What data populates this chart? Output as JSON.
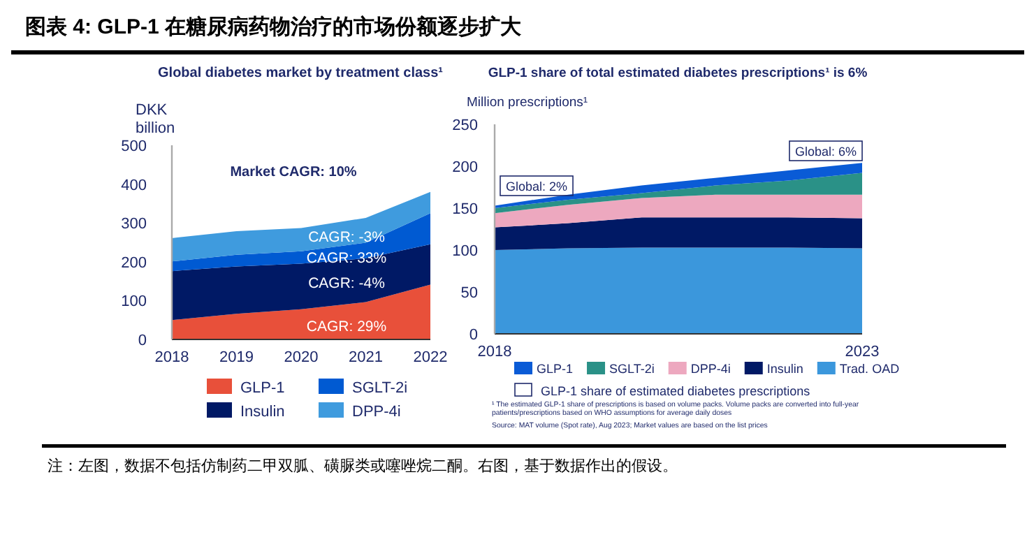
{
  "chart_data": [
    {
      "type": "area",
      "stacked": true,
      "title": "图表 4: GLP-1 在糖尿病药物治疗的市场份额逐步扩大",
      "subtitle": "Global diabetes market by treatment class¹",
      "ylabel": "DKK billion",
      "x": [
        2018,
        2019,
        2020,
        2021,
        2022
      ],
      "xlim": [
        2018,
        2022
      ],
      "xticks": [
        2018,
        2019,
        2020,
        2021,
        2022
      ],
      "ylim": [
        0,
        500
      ],
      "yticks": [
        0,
        100,
        200,
        300,
        400,
        500
      ],
      "legend": "bottom",
      "series": [
        {
          "name": "GLP-1",
          "color": "#e8503a",
          "values": [
            50,
            66,
            78,
            96,
            141
          ]
        },
        {
          "name": "Insulin",
          "color": "#001965",
          "values": [
            126,
            122,
            117,
            113,
            104
          ]
        },
        {
          "name": "SGLT-2i",
          "color": "#005ad2",
          "values": [
            25,
            30,
            32,
            40,
            80
          ]
        },
        {
          "name": "DPP-4i",
          "color": "#3f9bde",
          "values": [
            60,
            61,
            60,
            64,
            55
          ]
        }
      ],
      "annotations": [
        "Market CAGR: 10%",
        "CAGR:  -3%",
        "CAGR:  33%",
        "CAGR:  -4%",
        "CAGR:  29%",
        "注：左图，数据不包括仿制药二甲双胍、磺脲类或噻唑烷二酮。右图，基于数据作出的假设。"
      ]
    },
    {
      "type": "area",
      "stacked": true,
      "title": "GLP-1 share of total estimated diabetes prescriptions¹ is 6%",
      "ylabel": "Million prescriptions¹",
      "x": [
        2018,
        2019,
        2020,
        2021,
        2022,
        2023
      ],
      "xlim": [
        2018,
        2023
      ],
      "xticks": [
        2018,
        2023
      ],
      "ylim": [
        0,
        250
      ],
      "yticks": [
        0,
        50,
        100,
        150,
        200,
        250
      ],
      "legend": "bottom",
      "series": [
        {
          "name": "Trad. OAD",
          "color": "#3b97dc",
          "values": [
            100,
            102,
            103,
            103,
            103,
            102
          ]
        },
        {
          "name": "Insulin",
          "color": "#001965",
          "values": [
            27,
            30,
            36,
            36,
            36,
            36
          ]
        },
        {
          "name": "DPP-4i",
          "color": "#eda8bf",
          "values": [
            17,
            22,
            23,
            27,
            27,
            28
          ]
        },
        {
          "name": "SGLT-2i",
          "color": "#2a9187",
          "values": [
            6,
            6,
            6,
            11,
            17,
            26
          ]
        },
        {
          "name": "GLP-1",
          "color": "#0a5bd6",
          "values": [
            3,
            6,
            9,
            9,
            12,
            12
          ]
        }
      ],
      "annotations": [
        "Global: 2%",
        "Global: 6%",
        "GLP-1 share of estimated diabetes prescriptions",
        "¹ The estimated GLP-1 share of prescriptions is based on volume packs. Volume packs are converted into full-year patients/prescriptions based on WHO assumptions for average daily doses",
        "Source: MAT volume (Spot rate), Aug 2023; Market values are based on the list prices"
      ]
    }
  ]
}
